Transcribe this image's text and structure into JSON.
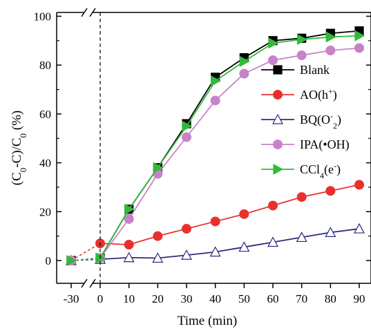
{
  "chart_data": {
    "type": "line",
    "x": [
      -30,
      0,
      10,
      20,
      30,
      40,
      50,
      60,
      70,
      80,
      90
    ],
    "xticks": [
      "-30",
      "0",
      "10",
      "20",
      "30",
      "40",
      "50",
      "60",
      "70",
      "80",
      "90"
    ],
    "yticks": [
      "0",
      "20",
      "40",
      "60",
      "80",
      "100"
    ],
    "ylim": [
      -8,
      100
    ],
    "xlabel": "Time (min)",
    "ylabel_parts": [
      "(C",
      "0",
      "-C)/C",
      "0",
      " (%)"
    ],
    "axis_break": true,
    "dark_marker_line": "0",
    "legend_placement": "right",
    "series": [
      {
        "name": "Blank",
        "legend_parts": [
          {
            "t": "Blank"
          }
        ],
        "marker": "square",
        "color": "#000000",
        "fill": "#000000",
        "values": [
          0,
          1,
          21,
          38,
          56,
          75,
          83,
          90,
          91,
          93,
          94
        ]
      },
      {
        "name": "AO(h+)",
        "legend_parts": [
          {
            "t": "AO(h"
          },
          {
            "t": "+",
            "sup": true
          },
          {
            "t": ")"
          }
        ],
        "marker": "circle",
        "color": "#e8312f",
        "fill": "#e8312f",
        "values": [
          0,
          7,
          6.5,
          10,
          13,
          16,
          19,
          22.5,
          26,
          28.5,
          31
        ]
      },
      {
        "name": "BQ(O2-)",
        "legend_parts": [
          {
            "t": "BQ(O"
          },
          {
            "t": "-",
            "sup": true
          },
          {
            "t": "2",
            "sub": true
          },
          {
            "t": ")"
          }
        ],
        "marker": "triangle-up",
        "color": "#2b2a7f",
        "fill": "#ffffff",
        "values": [
          0,
          0.5,
          1.2,
          1,
          2.2,
          3.5,
          5.5,
          7.5,
          9.5,
          11.5,
          13
        ]
      },
      {
        "name": "IPA(•OH)",
        "legend_parts": [
          {
            "t": "IPA(•OH)"
          }
        ],
        "marker": "circle",
        "color": "#c882c8",
        "fill": "#c882c8",
        "values": [
          0,
          1,
          17,
          35.5,
          50.5,
          65.5,
          76.5,
          82,
          84,
          86,
          87
        ]
      },
      {
        "name": "CCl4(e-)",
        "legend_parts": [
          {
            "t": "CCl"
          },
          {
            "t": "4",
            "sub": true
          },
          {
            "t": "(e"
          },
          {
            "t": "-",
            "sup": true
          },
          {
            "t": ")"
          }
        ],
        "marker": "triangle-right",
        "color": "#34b83c",
        "fill": "#34b83c",
        "values": [
          0,
          1,
          21,
          38,
          55,
          73.5,
          81.5,
          89,
          90.5,
          91.5,
          92
        ]
      }
    ]
  }
}
